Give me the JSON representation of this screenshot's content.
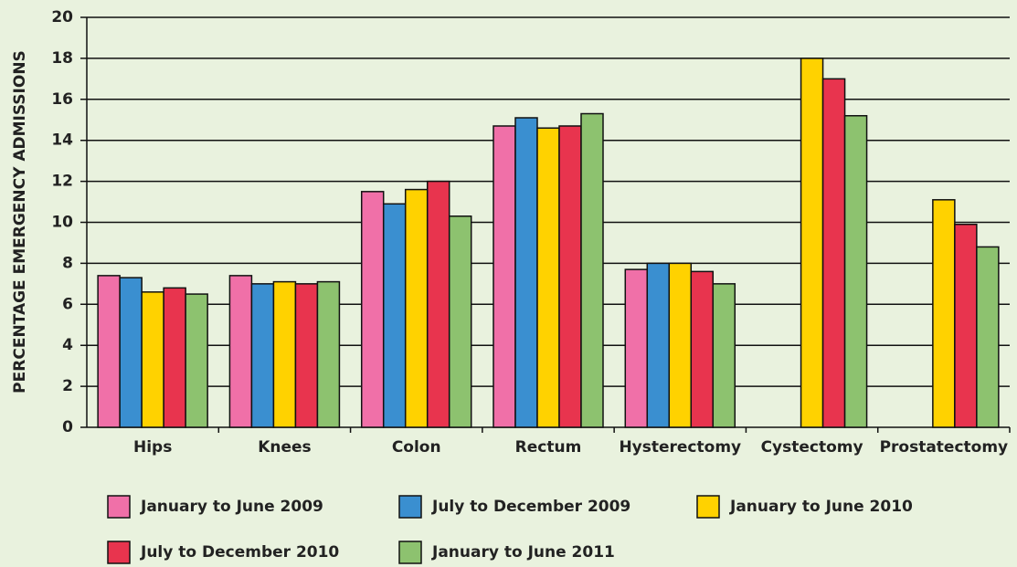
{
  "chart_data": {
    "type": "bar",
    "y_label": "PERCENTAGE EMERGENCY ADMISSIONS",
    "categories": [
      "Hips",
      "Knees",
      "Colon",
      "Rectum",
      "Hysterectomy",
      "Cystectomy",
      "Prostatectomy"
    ],
    "series": [
      {
        "name": "January to June 2009",
        "color": "#f070a8",
        "values": [
          7.4,
          7.4,
          11.5,
          14.7,
          7.7,
          null,
          null
        ]
      },
      {
        "name": "July to December 2009",
        "color": "#3a8fd0",
        "values": [
          7.3,
          7.0,
          10.9,
          15.1,
          8.0,
          null,
          null
        ]
      },
      {
        "name": "January to June 2010",
        "color": "#ffd200",
        "values": [
          6.6,
          7.1,
          11.6,
          14.6,
          8.0,
          18.0,
          11.1
        ]
      },
      {
        "name": "July to December 2010",
        "color": "#e8344e",
        "values": [
          6.8,
          7.0,
          12.0,
          14.7,
          7.6,
          17.0,
          9.9
        ]
      },
      {
        "name": "January to June 2011",
        "color": "#8dc26f",
        "values": [
          6.5,
          7.1,
          10.3,
          15.3,
          7.0,
          15.2,
          8.8
        ]
      }
    ],
    "ylim": [
      0,
      20
    ],
    "yticks": [
      0,
      2,
      4,
      6,
      8,
      10,
      12,
      14,
      16,
      18,
      20
    ],
    "grid": true
  }
}
